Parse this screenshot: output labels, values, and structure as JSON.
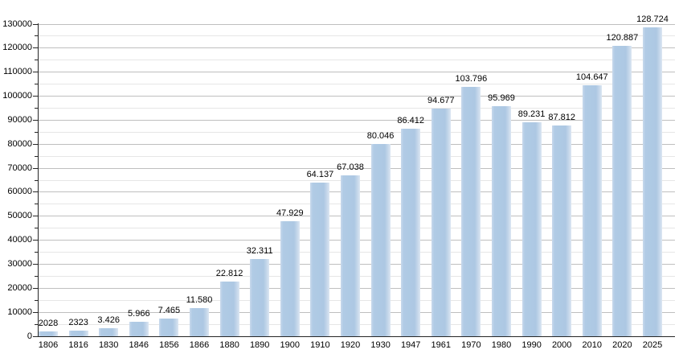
{
  "chart_data": {
    "type": "bar",
    "title": "",
    "xlabel": "",
    "ylabel": "",
    "categories": [
      "1806",
      "1816",
      "1830",
      "1846",
      "1856",
      "1866",
      "1880",
      "1890",
      "1900",
      "1910",
      "1920",
      "1930",
      "1947",
      "1961",
      "1970",
      "1980",
      "1990",
      "2000",
      "2010",
      "2020",
      "2025"
    ],
    "values": [
      2028,
      2323,
      3426,
      5966,
      7465,
      11580,
      22812,
      32311,
      47929,
      64137,
      67038,
      80046,
      86412,
      94677,
      103796,
      95969,
      89231,
      87812,
      104647,
      120887,
      128724
    ],
    "value_labels": [
      "2028",
      "2323",
      "3.426",
      "5.966",
      "7.465",
      "11.580",
      "22.812",
      "32.311",
      "47.929",
      "64.137",
      "67.038",
      "80.046",
      "86.412",
      "94.677",
      "103.796",
      "95.969",
      "89.231",
      "87.812",
      "104.647",
      "120.887",
      "128.724"
    ],
    "ylim": [
      0,
      130000
    ],
    "y_major_step": 10000,
    "y_minor_step": 5000,
    "y_tick_labels": [
      "0",
      "10000",
      "20000",
      "30000",
      "40000",
      "50000",
      "60000",
      "70000",
      "80000",
      "90000",
      "100000",
      "110000",
      "120000",
      "130000"
    ],
    "grid": true,
    "legend": "none"
  },
  "colors": {
    "bar_fill": "#adc8e3",
    "bar_highlight": "#dce6f2",
    "grid_major": "#bfbfbf",
    "grid_minor": "#e6e6e6",
    "axis": "#262626",
    "background": "#ffffff",
    "label_text": "#000000"
  }
}
